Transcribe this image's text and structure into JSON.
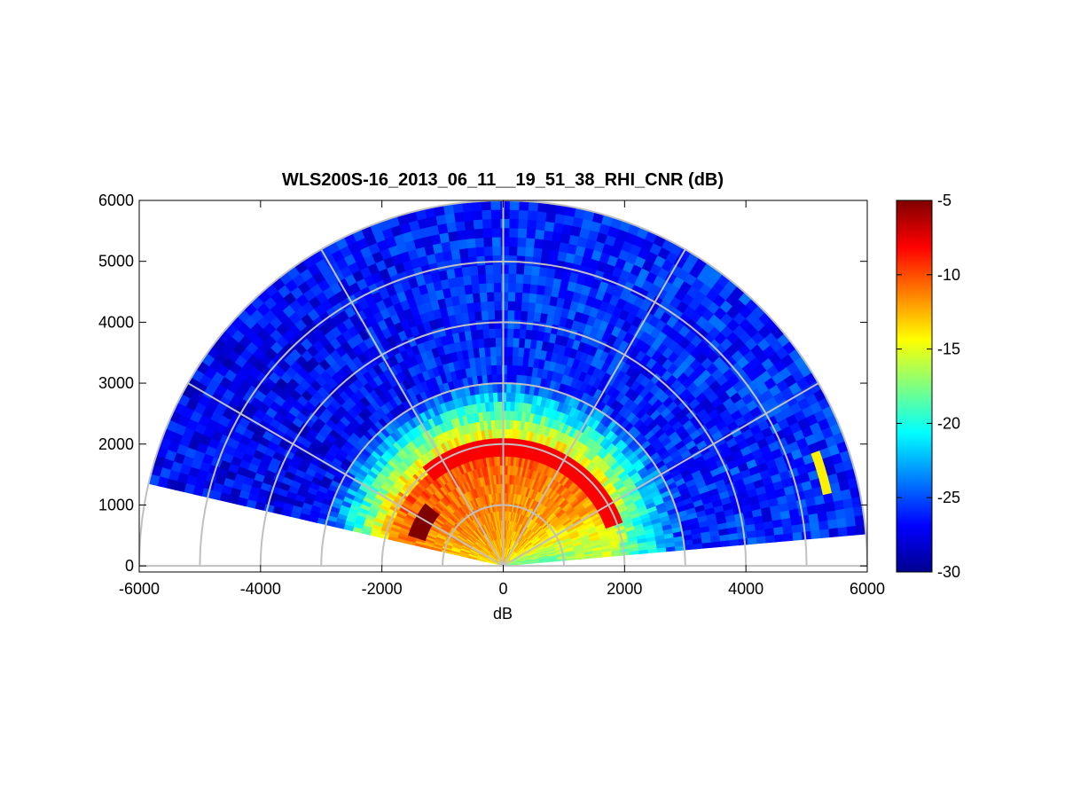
{
  "chart_data": {
    "type": "heatmap",
    "subtype": "polar RHI scan (range-height indicator)",
    "title": "WLS200S-16_2013_06_11__19_51_38_RHI_CNR (dB)",
    "xlabel": "dB",
    "ylabel": "",
    "xlim": [
      -6000,
      6000
    ],
    "ylim": [
      -100,
      6000
    ],
    "xticks": [
      "-6000",
      "-4000",
      "-2000",
      "0",
      "2000",
      "4000",
      "6000"
    ],
    "yticks": [
      "0",
      "1000",
      "2000",
      "3000",
      "4000",
      "5000",
      "6000"
    ],
    "grid": true,
    "range_rings": [
      1000,
      2000,
      3000,
      4000,
      5000,
      6000
    ],
    "radial_spokes_deg": [
      0,
      30,
      60,
      90,
      120,
      150,
      180
    ],
    "scan_elevation_range_deg": [
      5,
      167
    ],
    "max_range": 6000,
    "colorbar": {
      "colormap": "jet",
      "clim": [
        -30,
        -5
      ],
      "ticks": [
        "-5",
        "-10",
        "-15",
        "-20",
        "-25",
        "-30"
      ],
      "placement": "right"
    },
    "cnr_profile_samples": [
      {
        "elevation_deg": 5,
        "range_max_m": 6000,
        "cnr_db_near": -19,
        "cnr_db_far": -26
      },
      {
        "elevation_deg": 20,
        "range_max_m": 6000,
        "cnr_db_near": -17,
        "cnr_db_far": -26
      },
      {
        "elevation_deg": 40,
        "range_max_m": 6000,
        "cnr_db_near": -14,
        "cnr_db_far": -26
      },
      {
        "elevation_deg": 90,
        "range_max_m": 6000,
        "cnr_db_near": -13,
        "cnr_db_far": -26
      },
      {
        "elevation_deg": 140,
        "range_max_m": 6000,
        "cnr_db_near": -13,
        "cnr_db_far": -27
      },
      {
        "elevation_deg": 160,
        "range_max_m": 6000,
        "cnr_db_near": -14,
        "cnr_db_far": -27
      }
    ],
    "features": [
      {
        "description": "strong return band",
        "elevation_range_deg": [
          141,
          163
        ],
        "range_m": [
          1400,
          1700
        ],
        "cnr_db": -5
      },
      {
        "description": "boundary-layer top echoes",
        "elevation_range_deg": [
          20,
          130
        ],
        "range_m": [
          1850,
          2150
        ],
        "cnr_db": -8
      },
      {
        "description": "isolated strong bins",
        "elevation_range_deg": [
          12,
          20
        ],
        "range_m": [
          5450,
          5600
        ],
        "cnr_db": -14
      }
    ]
  }
}
